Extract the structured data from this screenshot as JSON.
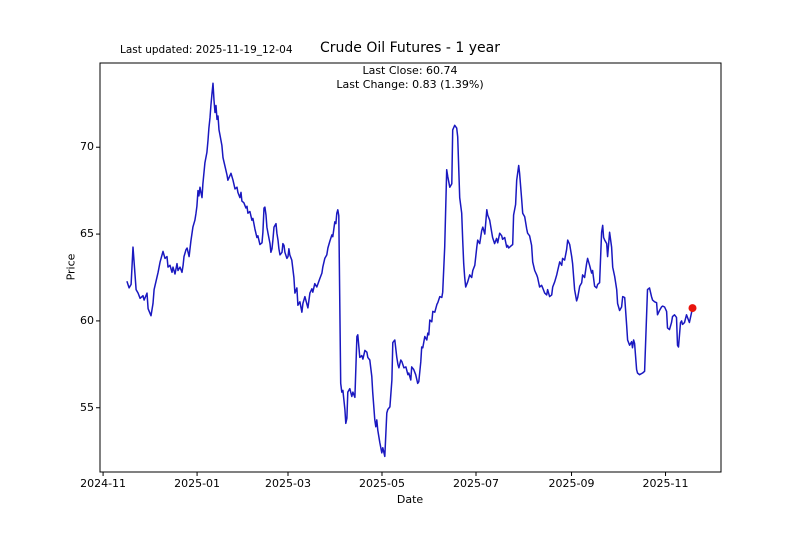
{
  "header": {
    "last_updated": "Last updated: 2025-11-19_12-04",
    "title": "Crude Oil Futures - 1 year"
  },
  "annotation": {
    "last_close": "Last Close: 60.74",
    "last_change": "Last Change: 0.83 (1.39%)"
  },
  "chart_data": {
    "type": "line",
    "title": "Crude Oil Futures - 1 year",
    "xlabel": "Date",
    "ylabel": "Price",
    "grid": false,
    "legend": false,
    "line_color": "#1a18c0",
    "marker_color": "#e8150d",
    "last_close": 60.74,
    "last_change": 0.83,
    "last_change_pct": "1.39%",
    "x_axis": {
      "unit": "days since 2024-11-01",
      "min": -2,
      "max": 401,
      "ticks": [
        {
          "day": 0,
          "label": "2024-11"
        },
        {
          "day": 61,
          "label": "2025-01"
        },
        {
          "day": 120,
          "label": "2025-03"
        },
        {
          "day": 181,
          "label": "2025-05"
        },
        {
          "day": 242,
          "label": "2025-07"
        },
        {
          "day": 304,
          "label": "2025-09"
        },
        {
          "day": 365,
          "label": "2025-11"
        }
      ]
    },
    "y_axis": {
      "min": 51.3,
      "max": 74.85,
      "ticks": [
        55,
        60,
        65,
        70
      ]
    },
    "points": [
      [
        15.6,
        62.25
      ],
      [
        16.9,
        61.9
      ],
      [
        18.2,
        62.1
      ],
      [
        19.4,
        64.25
      ],
      [
        21.4,
        61.8
      ],
      [
        22.7,
        61.6
      ],
      [
        24,
        61.3
      ],
      [
        25.9,
        61.45
      ],
      [
        26.6,
        61.2
      ],
      [
        28.5,
        61.6
      ],
      [
        29.2,
        60.7
      ],
      [
        31.1,
        60.3
      ],
      [
        32.4,
        61.0
      ],
      [
        33.1,
        61.8
      ],
      [
        35.7,
        62.8
      ],
      [
        37,
        63.4
      ],
      [
        38.9,
        64.0
      ],
      [
        40.2,
        63.6
      ],
      [
        41.5,
        63.7
      ],
      [
        42.1,
        63.1
      ],
      [
        43.4,
        63.2
      ],
      [
        44.7,
        62.8
      ],
      [
        45.4,
        63.1
      ],
      [
        46.7,
        62.7
      ],
      [
        48,
        63.3
      ],
      [
        48.6,
        62.9
      ],
      [
        49.9,
        63.1
      ],
      [
        51.2,
        62.8
      ],
      [
        51.9,
        63.2
      ],
      [
        52.5,
        63.7
      ],
      [
        53.8,
        64.1
      ],
      [
        54.5,
        64.2
      ],
      [
        55.8,
        63.7
      ],
      [
        57,
        64.6
      ],
      [
        58.3,
        65.4
      ],
      [
        59.6,
        65.8
      ],
      [
        60.3,
        66.2
      ],
      [
        60.9,
        66.6
      ],
      [
        61.6,
        67.5
      ],
      [
        62.2,
        67.2
      ],
      [
        62.9,
        67.7
      ],
      [
        63.5,
        67.4
      ],
      [
        64.2,
        67.1
      ],
      [
        64.8,
        67.9
      ],
      [
        66.1,
        69.1
      ],
      [
        67.4,
        69.7
      ],
      [
        68.1,
        70.4
      ],
      [
        68.7,
        71.1
      ],
      [
        69.4,
        71.7
      ],
      [
        70,
        72.4
      ],
      [
        70.7,
        73.1
      ],
      [
        71.3,
        73.68
      ],
      [
        72,
        72.7
      ],
      [
        72.6,
        72.0
      ],
      [
        73.3,
        72.4
      ],
      [
        73.9,
        71.6
      ],
      [
        74.6,
        71.8
      ],
      [
        75.2,
        71.0
      ],
      [
        75.9,
        70.7
      ],
      [
        77.1,
        70.1
      ],
      [
        77.8,
        69.4
      ],
      [
        79.1,
        68.9
      ],
      [
        80.4,
        68.4
      ],
      [
        81,
        68.1
      ],
      [
        83,
        68.5
      ],
      [
        84.3,
        68.1
      ],
      [
        85.6,
        67.6
      ],
      [
        86.9,
        67.7
      ],
      [
        87.5,
        67.4
      ],
      [
        88.8,
        67.1
      ],
      [
        89.5,
        67.4
      ],
      [
        90.1,
        66.9
      ],
      [
        91.4,
        66.8
      ],
      [
        92.7,
        66.5
      ],
      [
        93.4,
        66.6
      ],
      [
        94,
        66.2
      ],
      [
        95.3,
        66.3
      ],
      [
        96.6,
        65.8
      ],
      [
        97.2,
        65.9
      ],
      [
        98.5,
        65.3
      ],
      [
        99.8,
        64.8
      ],
      [
        100.5,
        64.9
      ],
      [
        101.8,
        64.4
      ],
      [
        103.1,
        64.5
      ],
      [
        103.7,
        65.1
      ],
      [
        104.4,
        66.5
      ],
      [
        105,
        66.55
      ],
      [
        105.7,
        66.1
      ],
      [
        106.3,
        65.4
      ],
      [
        107,
        65.05
      ],
      [
        108.3,
        64.45
      ],
      [
        108.9,
        63.95
      ],
      [
        109.6,
        64.15
      ],
      [
        110.2,
        64.65
      ],
      [
        110.9,
        65.4
      ],
      [
        112.2,
        65.6
      ],
      [
        112.8,
        65.05
      ],
      [
        113.5,
        64.65
      ],
      [
        114.1,
        64.15
      ],
      [
        114.8,
        63.8
      ],
      [
        116.1,
        63.95
      ],
      [
        116.7,
        64.45
      ],
      [
        117.4,
        64.35
      ],
      [
        118,
        63.95
      ],
      [
        119.3,
        63.6
      ],
      [
        120,
        63.7
      ],
      [
        120.6,
        64.15
      ],
      [
        121.2,
        63.8
      ],
      [
        122.5,
        63.5
      ],
      [
        123.8,
        62.5
      ],
      [
        124.5,
        61.6
      ],
      [
        125.8,
        61.9
      ],
      [
        126.4,
        60.9
      ],
      [
        127.7,
        61.1
      ],
      [
        129,
        60.5
      ],
      [
        129.7,
        61.0
      ],
      [
        131,
        61.4
      ],
      [
        132.9,
        60.75
      ],
      [
        134.2,
        61.6
      ],
      [
        135.5,
        61.85
      ],
      [
        136.1,
        61.65
      ],
      [
        137.4,
        62.15
      ],
      [
        138.7,
        61.95
      ],
      [
        140.7,
        62.45
      ],
      [
        142,
        62.75
      ],
      [
        142.6,
        63.1
      ],
      [
        143.9,
        63.6
      ],
      [
        145.2,
        63.8
      ],
      [
        145.9,
        64.2
      ],
      [
        147.2,
        64.6
      ],
      [
        148.5,
        64.95
      ],
      [
        149.1,
        64.85
      ],
      [
        150.4,
        65.7
      ],
      [
        151.1,
        65.6
      ],
      [
        151.7,
        66.2
      ],
      [
        152.3,
        66.4
      ],
      [
        153,
        66.05
      ],
      [
        154.2,
        56.4
      ],
      [
        154.9,
        55.9
      ],
      [
        155.6,
        56.0
      ],
      [
        156.9,
        54.9
      ],
      [
        157.5,
        54.1
      ],
      [
        158.2,
        54.4
      ],
      [
        158.8,
        55.9
      ],
      [
        160.1,
        56.1
      ],
      [
        161.4,
        55.65
      ],
      [
        162.1,
        55.9
      ],
      [
        163.4,
        55.6
      ],
      [
        164.7,
        59.1
      ],
      [
        165.3,
        59.2
      ],
      [
        166.6,
        57.9
      ],
      [
        167.9,
        58.0
      ],
      [
        168.6,
        57.8
      ],
      [
        169.9,
        58.3
      ],
      [
        171.2,
        58.2
      ],
      [
        171.8,
        57.9
      ],
      [
        173.1,
        57.75
      ],
      [
        174.4,
        56.8
      ],
      [
        175,
        55.9
      ],
      [
        176.3,
        54.3
      ],
      [
        177,
        53.9
      ],
      [
        177.6,
        54.3
      ],
      [
        178.3,
        53.7
      ],
      [
        179.6,
        53.0
      ],
      [
        180.9,
        52.4
      ],
      [
        181.5,
        52.7
      ],
      [
        182.8,
        52.2
      ],
      [
        184.1,
        54.7
      ],
      [
        184.8,
        54.9
      ],
      [
        186.1,
        55.05
      ],
      [
        187.4,
        56.6
      ],
      [
        188,
        58.75
      ],
      [
        189.3,
        58.9
      ],
      [
        190.6,
        57.9
      ],
      [
        191.3,
        57.5
      ],
      [
        192,
        57.3
      ],
      [
        193.2,
        57.75
      ],
      [
        193.9,
        57.65
      ],
      [
        195.2,
        57.3
      ],
      [
        196.5,
        57.35
      ],
      [
        197.8,
        56.9
      ],
      [
        198.4,
        57.0
      ],
      [
        199.7,
        56.6
      ],
      [
        200.3,
        57.35
      ],
      [
        201.6,
        57.2
      ],
      [
        202.9,
        56.9
      ],
      [
        204.2,
        56.4
      ],
      [
        204.9,
        56.5
      ],
      [
        206.2,
        57.65
      ],
      [
        206.8,
        58.5
      ],
      [
        207.5,
        58.45
      ],
      [
        208.8,
        59.1
      ],
      [
        210.1,
        58.9
      ],
      [
        210.7,
        59.3
      ],
      [
        211.4,
        59.2
      ],
      [
        212,
        60.05
      ],
      [
        213.3,
        59.95
      ],
      [
        214,
        60.55
      ],
      [
        215.3,
        60.5
      ],
      [
        216.6,
        60.95
      ],
      [
        217.2,
        61.05
      ],
      [
        218.5,
        61.4
      ],
      [
        219.8,
        61.35
      ],
      [
        220.4,
        61.65
      ],
      [
        221.7,
        64.25
      ],
      [
        223,
        68.7
      ],
      [
        223.7,
        68.3
      ],
      [
        225,
        67.7
      ],
      [
        226.3,
        67.9
      ],
      [
        226.9,
        71.0
      ],
      [
        228.2,
        71.26
      ],
      [
        229.5,
        71.1
      ],
      [
        230.1,
        70.6
      ],
      [
        231.4,
        67.1
      ],
      [
        232.7,
        66.2
      ],
      [
        233.4,
        64.65
      ],
      [
        234,
        63.3
      ],
      [
        234.7,
        62.5
      ],
      [
        235.3,
        61.95
      ],
      [
        236.6,
        62.25
      ],
      [
        237.9,
        62.65
      ],
      [
        239.2,
        62.5
      ],
      [
        239.9,
        62.9
      ],
      [
        241.2,
        63.2
      ],
      [
        242.5,
        64.25
      ],
      [
        243.1,
        64.65
      ],
      [
        244.4,
        64.45
      ],
      [
        245.7,
        65.2
      ],
      [
        246.4,
        65.4
      ],
      [
        247.7,
        65.0
      ],
      [
        249,
        66.4
      ],
      [
        249.6,
        66.1
      ],
      [
        250.9,
        65.8
      ],
      [
        252.2,
        65.1
      ],
      [
        252.8,
        64.8
      ],
      [
        254.1,
        64.45
      ],
      [
        255.4,
        64.75
      ],
      [
        256.1,
        64.5
      ],
      [
        257.4,
        65.05
      ],
      [
        258.7,
        64.9
      ],
      [
        259.3,
        64.7
      ],
      [
        260.6,
        64.8
      ],
      [
        261.9,
        64.25
      ],
      [
        262.5,
        64.35
      ],
      [
        263.2,
        64.2
      ],
      [
        264.5,
        64.3
      ],
      [
        265.8,
        64.4
      ],
      [
        266.4,
        66.1
      ],
      [
        267.7,
        66.7
      ],
      [
        268.4,
        68.1
      ],
      [
        269.7,
        68.95
      ],
      [
        270.3,
        68.5
      ],
      [
        271.6,
        67.05
      ],
      [
        272.3,
        66.2
      ],
      [
        273.6,
        66.0
      ],
      [
        274.9,
        65.3
      ],
      [
        275.5,
        65.05
      ],
      [
        276.8,
        64.9
      ],
      [
        278.1,
        64.35
      ],
      [
        278.8,
        63.4
      ],
      [
        280.1,
        62.9
      ],
      [
        281.4,
        62.65
      ],
      [
        282,
        62.5
      ],
      [
        283.3,
        61.95
      ],
      [
        284.6,
        62.05
      ],
      [
        285.3,
        61.9
      ],
      [
        286.6,
        61.6
      ],
      [
        287.9,
        61.5
      ],
      [
        288.5,
        61.8
      ],
      [
        289.8,
        61.4
      ],
      [
        291.1,
        61.5
      ],
      [
        291.8,
        61.95
      ],
      [
        293.1,
        62.25
      ],
      [
        294.4,
        62.65
      ],
      [
        295,
        62.9
      ],
      [
        296.3,
        63.4
      ],
      [
        297.6,
        63.2
      ],
      [
        298.2,
        63.6
      ],
      [
        299.5,
        63.5
      ],
      [
        300.8,
        64.1
      ],
      [
        301.5,
        64.65
      ],
      [
        302.8,
        64.4
      ],
      [
        304.1,
        63.7
      ],
      [
        304.7,
        63.3
      ],
      [
        306,
        61.8
      ],
      [
        307.3,
        61.15
      ],
      [
        308,
        61.35
      ],
      [
        309.3,
        62.0
      ],
      [
        310.6,
        62.2
      ],
      [
        311.2,
        62.65
      ],
      [
        312.5,
        62.5
      ],
      [
        313.8,
        63.3
      ],
      [
        314.4,
        63.6
      ],
      [
        315.7,
        63.2
      ],
      [
        317,
        62.75
      ],
      [
        317.7,
        62.9
      ],
      [
        319,
        62.0
      ],
      [
        320.3,
        61.9
      ],
      [
        320.9,
        62.1
      ],
      [
        322.2,
        62.2
      ],
      [
        323.5,
        65.1
      ],
      [
        324.2,
        65.5
      ],
      [
        324.8,
        64.8
      ],
      [
        325.5,
        64.65
      ],
      [
        326.8,
        64.45
      ],
      [
        327.4,
        63.7
      ],
      [
        328.7,
        65.1
      ],
      [
        330,
        64.25
      ],
      [
        330.7,
        63.1
      ],
      [
        332,
        62.55
      ],
      [
        333.3,
        61.8
      ],
      [
        333.9,
        61.0
      ],
      [
        335.2,
        60.6
      ],
      [
        336.5,
        60.8
      ],
      [
        337.2,
        61.4
      ],
      [
        338.5,
        61.35
      ],
      [
        339.8,
        59.7
      ],
      [
        340.4,
        58.9
      ],
      [
        341.7,
        58.6
      ],
      [
        343,
        58.8
      ],
      [
        343.6,
        58.45
      ],
      [
        344.3,
        58.9
      ],
      [
        344.9,
        58.7
      ],
      [
        346.2,
        57.2
      ],
      [
        346.8,
        57.0
      ],
      [
        348.1,
        56.9
      ],
      [
        350.1,
        57.0
      ],
      [
        351.4,
        57.1
      ],
      [
        353.3,
        61.8
      ],
      [
        354.6,
        61.9
      ],
      [
        355.9,
        61.4
      ],
      [
        356.6,
        61.2
      ],
      [
        357.9,
        61.1
      ],
      [
        359.2,
        61.05
      ],
      [
        359.8,
        60.35
      ],
      [
        361.1,
        60.6
      ],
      [
        362.4,
        60.8
      ],
      [
        363.1,
        60.85
      ],
      [
        364.4,
        60.8
      ],
      [
        365.7,
        60.55
      ],
      [
        366.3,
        59.6
      ],
      [
        367.6,
        59.5
      ],
      [
        368.9,
        59.9
      ],
      [
        369.5,
        60.25
      ],
      [
        370.8,
        60.35
      ],
      [
        372.1,
        60.2
      ],
      [
        372.8,
        58.6
      ],
      [
        373.4,
        58.5
      ],
      [
        374.7,
        59.9
      ],
      [
        375.4,
        60.0
      ],
      [
        376,
        59.8
      ],
      [
        377.3,
        59.9
      ],
      [
        378.6,
        60.35
      ],
      [
        380.5,
        59.91
      ],
      [
        382.5,
        60.74
      ]
    ]
  }
}
